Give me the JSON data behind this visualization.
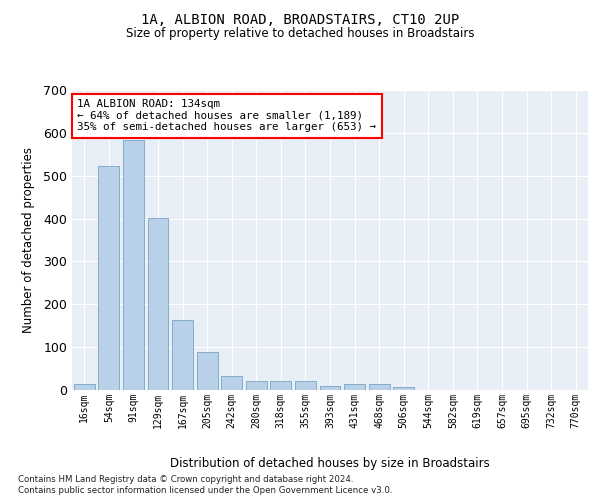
{
  "title": "1A, ALBION ROAD, BROADSTAIRS, CT10 2UP",
  "subtitle": "Size of property relative to detached houses in Broadstairs",
  "xlabel": "Distribution of detached houses by size in Broadstairs",
  "ylabel": "Number of detached properties",
  "bar_color": "#b8d0e8",
  "bar_edge_color": "#6699bb",
  "background_color": "#e8eef5",
  "grid_color": "#ffffff",
  "categories": [
    "16sqm",
    "54sqm",
    "91sqm",
    "129sqm",
    "167sqm",
    "205sqm",
    "242sqm",
    "280sqm",
    "318sqm",
    "355sqm",
    "393sqm",
    "431sqm",
    "468sqm",
    "506sqm",
    "544sqm",
    "582sqm",
    "619sqm",
    "657sqm",
    "695sqm",
    "732sqm",
    "770sqm"
  ],
  "values": [
    15,
    522,
    583,
    401,
    163,
    88,
    32,
    20,
    22,
    20,
    10,
    13,
    13,
    7,
    0,
    0,
    0,
    0,
    0,
    0,
    0
  ],
  "ylim": [
    0,
    700
  ],
  "yticks": [
    0,
    100,
    200,
    300,
    400,
    500,
    600,
    700
  ],
  "annotation_text": "1A ALBION ROAD: 134sqm\n← 64% of detached houses are smaller (1,189)\n35% of semi-detached houses are larger (653) →",
  "annotation_box_color": "white",
  "annotation_box_edge": "red",
  "property_bar_index": 2,
  "footnote1": "Contains HM Land Registry data © Crown copyright and database right 2024.",
  "footnote2": "Contains public sector information licensed under the Open Government Licence v3.0."
}
